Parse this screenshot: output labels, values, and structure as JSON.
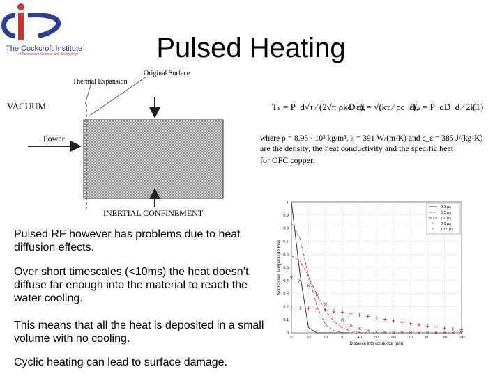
{
  "logo": {
    "name": "The Cockcroft Institute",
    "subtitle": "of Accelerator Science and Technology"
  },
  "title": "Pulsed Heating",
  "diagram": {
    "original_surface": "Original Surface",
    "thermal_expansion": "Thermal Expansion",
    "vacuum": "VACUUM",
    "power": "Power",
    "inertial": "INERTIAL CONFINEMENT"
  },
  "equations": {
    "eq1": "Tₛ = P_d√τ ⁄ (2√π ρkc_ε),",
    "eq2": "D_d = √(kτ ⁄ ρc_ε),",
    "eq3": "Tₛ = P_dD_d ⁄ 2k,",
    "number": "(1)",
    "line1": "where ρ = 8.95 · 10³ kg/m³, k = 391 W/(m·K) and c_ε = 385 J/(kg·K)",
    "line2": "are the density, the heat conductivity and the specific heat",
    "line3": "for OFC copper."
  },
  "bullets": [
    "Pulsed RF however has problems due to heat diffusion effects.",
    "Over short timescales (<10ms) the heat doesn’t diffuse far enough into the material to reach the water cooling.",
    "This means that all the heat is deposited in a small volume with no cooling.",
    "Cyclic heating can lead to surface damage."
  ],
  "plot": {
    "type": "line",
    "xlabel": "Distance into conductor (µm)",
    "ylabel": "Normalized Temperature Rise",
    "x": [
      0,
      5,
      10,
      15,
      20,
      25,
      30,
      35,
      40,
      45,
      50,
      55,
      60,
      65,
      70,
      75,
      80,
      85,
      90,
      95,
      100
    ],
    "xlim": [
      0,
      100
    ],
    "xticks": [
      0,
      10,
      20,
      30,
      40,
      50,
      60,
      70,
      80,
      90,
      100
    ],
    "ylim": [
      0,
      1
    ],
    "yticks": [
      0,
      0.1,
      0.2,
      0.3,
      0.4,
      0.5,
      0.6,
      0.7,
      0.8,
      0.9,
      1
    ],
    "grid": true,
    "legend": "upper right",
    "series": [
      {
        "name": "0.1 µs",
        "color": "#333333",
        "style": "solid",
        "values": [
          1.0,
          0.45,
          0.04,
          0,
          0,
          0,
          0,
          0,
          0,
          0,
          0,
          0,
          0,
          0,
          0,
          0,
          0,
          0,
          0,
          0,
          0
        ]
      },
      {
        "name": "0.5 µs",
        "color": "#777777",
        "style": "dashed",
        "values": [
          0.84,
          0.72,
          0.44,
          0.2,
          0.065,
          0.015,
          0.003,
          0,
          0,
          0,
          0,
          0,
          0,
          0,
          0,
          0,
          0,
          0,
          0,
          0,
          0
        ]
      },
      {
        "name": "1.0 µs",
        "color": "#cc3333",
        "style": "dashdot",
        "values": [
          0.59,
          0.55,
          0.43,
          0.29,
          0.17,
          0.086,
          0.037,
          0.013,
          0.005,
          0,
          0,
          0,
          0,
          0,
          0,
          0,
          0,
          0,
          0,
          0,
          0
        ]
      },
      {
        "name": "2.0 µs",
        "color": "#5a4fa0",
        "style": "x",
        "values": [
          0.42,
          0.4,
          0.36,
          0.29,
          0.22,
          0.155,
          0.1,
          0.059,
          0.032,
          0.016,
          0.008,
          0.003,
          0,
          0,
          0,
          0,
          0,
          0,
          0,
          0,
          0
        ]
      },
      {
        "name": "10.0 µs",
        "color": "#d02020",
        "style": "+",
        "values": [
          0.19,
          0.189,
          0.186,
          0.181,
          0.175,
          0.167,
          0.158,
          0.148,
          0.137,
          0.126,
          0.114,
          0.103,
          0.091,
          0.08,
          0.07,
          0.06,
          0.051,
          0.044,
          0.036,
          0.03,
          0.025
        ]
      }
    ]
  }
}
